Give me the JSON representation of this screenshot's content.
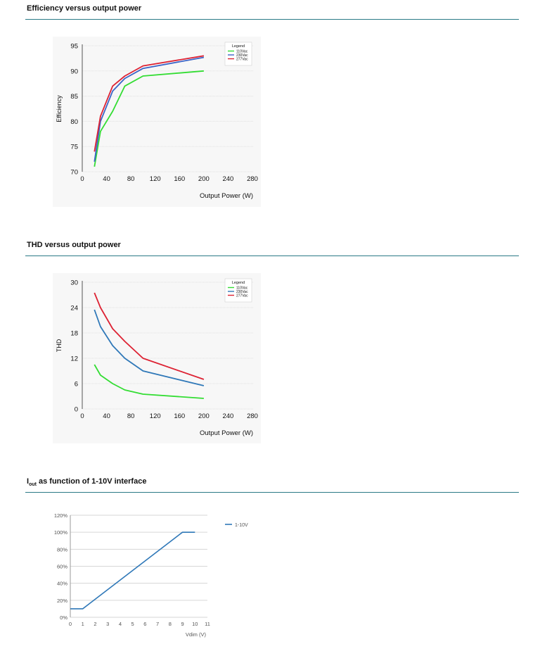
{
  "sections": [
    {
      "title": "Efficiency versus output power"
    },
    {
      "title": "THD versus output power"
    },
    {
      "title_main": "I",
      "title_sub": "out",
      "title_rest": " as function of 1-10V interface"
    }
  ],
  "chart_data": [
    {
      "type": "line",
      "title": "Efficiency versus output power",
      "xlabel": "Output Power (W)",
      "ylabel": "Efficiency",
      "xlim": [
        0,
        280
      ],
      "ylim": [
        70,
        95
      ],
      "xticks": [
        0,
        40,
        80,
        120,
        160,
        200,
        240,
        280
      ],
      "yticks": [
        70,
        75,
        80,
        85,
        90,
        95
      ],
      "legend_title": "Legend",
      "legend_position": "top-right",
      "grid": true,
      "series": [
        {
          "name": "110Vac",
          "color": "#33dd33",
          "x": [
            20,
            30,
            50,
            70,
            100,
            200
          ],
          "y": [
            71,
            78,
            82,
            87,
            89,
            90
          ]
        },
        {
          "name": "230Vac",
          "color": "#3a64c8",
          "x": [
            20,
            30,
            50,
            70,
            100,
            200
          ],
          "y": [
            72,
            80,
            86,
            88.5,
            90.5,
            92.7
          ]
        },
        {
          "name": "277Vac",
          "color": "#dd2233",
          "x": [
            20,
            30,
            50,
            70,
            100,
            200
          ],
          "y": [
            74,
            81,
            87,
            89,
            91,
            93
          ]
        }
      ]
    },
    {
      "type": "line",
      "title": "THD versus output power",
      "xlabel": "Output Power (W)",
      "ylabel": "THD",
      "xlim": [
        0,
        280
      ],
      "ylim": [
        0,
        30
      ],
      "xticks": [
        0,
        40,
        80,
        120,
        160,
        200,
        240,
        280
      ],
      "yticks": [
        0,
        6,
        12,
        18,
        24,
        30
      ],
      "legend_title": "Legend",
      "legend_position": "top-right",
      "grid": true,
      "series": [
        {
          "name": "110Vac",
          "color": "#33dd33",
          "x": [
            20,
            30,
            50,
            70,
            100,
            200
          ],
          "y": [
            10.5,
            8,
            6,
            4.5,
            3.5,
            2.5
          ]
        },
        {
          "name": "230Vac",
          "color": "#2f78b8",
          "x": [
            20,
            30,
            50,
            70,
            100,
            200
          ],
          "y": [
            23.5,
            19.5,
            15,
            12,
            9,
            5.5
          ]
        },
        {
          "name": "277Vac",
          "color": "#dd2233",
          "x": [
            20,
            30,
            50,
            70,
            100,
            200
          ],
          "y": [
            27.5,
            24,
            19,
            16,
            12,
            7
          ]
        }
      ]
    },
    {
      "type": "line",
      "title": "Iout as function of 1-10V interface",
      "xlabel": "Vdim (V)",
      "ylabel": "",
      "xlim": [
        0,
        11
      ],
      "ylim": [
        0,
        120
      ],
      "xticks": [
        0,
        1,
        2,
        3,
        4,
        5,
        6,
        7,
        8,
        9,
        10,
        11
      ],
      "yticks": [
        "0%",
        "20%",
        "40%",
        "60%",
        "80%",
        "100%",
        "120%"
      ],
      "ytick_values": [
        0,
        20,
        40,
        60,
        80,
        100,
        120
      ],
      "legend_position": "right",
      "grid": true,
      "series": [
        {
          "name": "1-10V",
          "color": "#2f78b8",
          "x": [
            0,
            1,
            9,
            10
          ],
          "y": [
            10,
            10,
            100,
            100
          ]
        }
      ]
    }
  ]
}
